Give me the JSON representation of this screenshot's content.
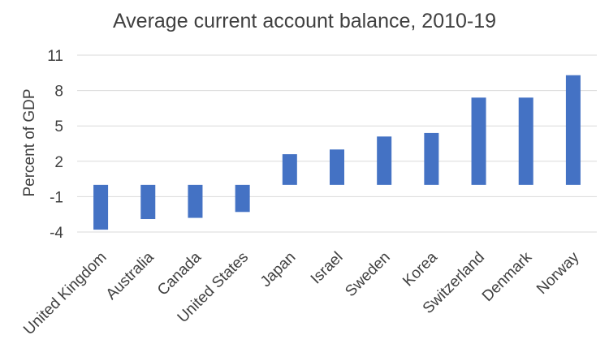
{
  "chart_data": {
    "type": "bar",
    "title": "Average current account balance, 2010-19",
    "xlabel": "",
    "ylabel": "Percent of GDP",
    "categories": [
      "United Kingdom",
      "Australia",
      "Canada",
      "United States",
      "Japan",
      "Israel",
      "Sweden",
      "Korea",
      "Switzerland",
      "Denmark",
      "Norway"
    ],
    "values": [
      -3.8,
      -2.9,
      -2.8,
      -2.3,
      2.6,
      3.0,
      4.1,
      4.4,
      7.4,
      7.4,
      9.3
    ],
    "ylim": [
      -4,
      11
    ],
    "yticks": [
      "11",
      "8",
      "5",
      "2",
      "-1",
      "-4"
    ],
    "grid": true,
    "legend": "none",
    "bar_color": "#4472c4",
    "grid_color": "#d9d9d9"
  }
}
